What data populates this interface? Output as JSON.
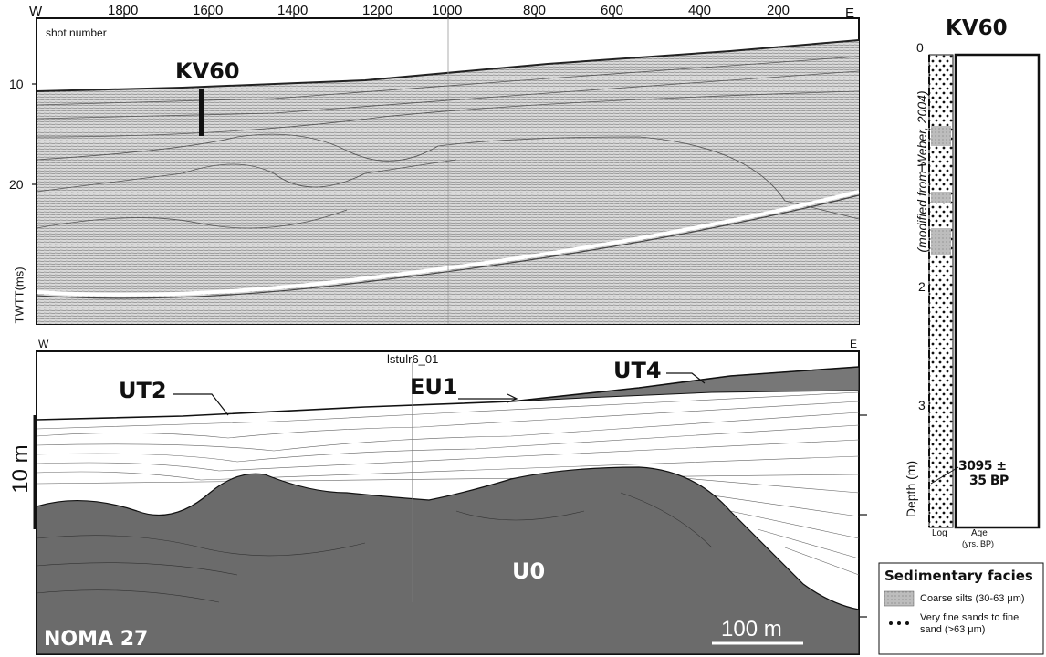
{
  "top_panel": {
    "left_dir": "W",
    "right_dir": "E",
    "shot_ticks": [
      "1800",
      "1600",
      "1400",
      "1200",
      "1000",
      "800",
      "600",
      "400",
      "200"
    ],
    "shot_label": "shot number",
    "core_label": "KV60",
    "y_ticks": [
      "10",
      "20"
    ],
    "y_label": "TWTT(ms)"
  },
  "bottom_panel": {
    "left_dir": "W",
    "right_dir": "E",
    "crossline_label": "lstulr6_01",
    "units": {
      "ut2": "UT2",
      "eu1": "EU1",
      "ut4": "UT4",
      "u0": "U0"
    },
    "profile_name": "NOMA 27",
    "vertical_scale": "10 m",
    "horizontal_scale": "100 m"
  },
  "core_log": {
    "title": "KV60",
    "source_note": "(modified from Weber, 2004)",
    "depth_ticks": [
      "0",
      "1",
      "2",
      "3"
    ],
    "depth_label": "Depth (m)",
    "date_line1": "3095 ±",
    "date_line2": "35 BP",
    "log_label": "Log",
    "age_label": "Age",
    "age_units": "(yrs. BP)"
  },
  "legend": {
    "title": "Sedimentary facies",
    "items": [
      {
        "label": "Coarse silts (30-63 μm)"
      },
      {
        "label": "Very fine sands to fine"
      },
      {
        "label": "sand (>63 μm)"
      }
    ]
  }
}
